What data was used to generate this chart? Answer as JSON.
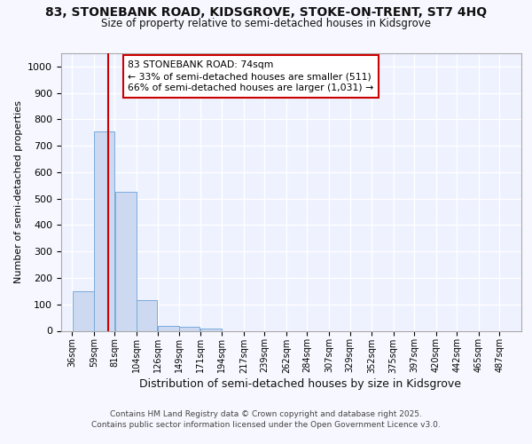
{
  "title_line1": "83, STONEBANK ROAD, KIDSGROVE, STOKE-ON-TRENT, ST7 4HQ",
  "title_line2": "Size of property relative to semi-detached houses in Kidsgrove",
  "xlabel": "Distribution of semi-detached houses by size in Kidsgrove",
  "ylabel": "Number of semi-detached properties",
  "footer": "Contains HM Land Registry data © Crown copyright and database right 2025.\nContains public sector information licensed under the Open Government Licence v3.0.",
  "bins": [
    36,
    59,
    81,
    104,
    126,
    149,
    171,
    194,
    217,
    239,
    262,
    284,
    307,
    329,
    352,
    375,
    397,
    420,
    442,
    465,
    487
  ],
  "counts": [
    150,
    755,
    525,
    115,
    20,
    15,
    8,
    0,
    0,
    0,
    0,
    0,
    0,
    0,
    0,
    0,
    0,
    0,
    0,
    0
  ],
  "property_size": 74,
  "bar_color": "#ccd9f0",
  "bar_edge_color": "#7aabdc",
  "vline_color": "#cc0000",
  "annotation_text": "83 STONEBANK ROAD: 74sqm\n← 33% of semi-detached houses are smaller (511)\n66% of semi-detached houses are larger (1,031) →",
  "annotation_box_color": "#ffffff",
  "annotation_box_edge": "#cc0000",
  "ylim": [
    0,
    1050
  ],
  "yticks": [
    0,
    100,
    200,
    300,
    400,
    500,
    600,
    700,
    800,
    900,
    1000
  ],
  "background_color": "#f7f7ff",
  "plot_background": "#eef2ff",
  "grid_color": "#ffffff"
}
